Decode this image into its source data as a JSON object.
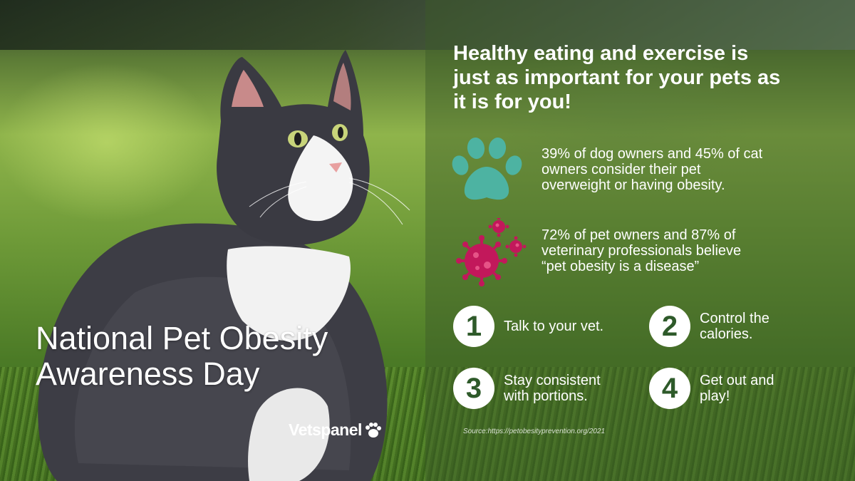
{
  "colors": {
    "accent_teal": "#4db3a2",
    "accent_magenta": "#c2185b",
    "text": "#ffffff",
    "number_text": "#2e5a2a"
  },
  "title": {
    "line1": "National Pet Obesity",
    "line2": "Awareness Day"
  },
  "logo": {
    "text": "Vetspanel",
    "icon": "paw-icon"
  },
  "headline": {
    "line1": "Healthy eating and exercise is",
    "line2": "just as important for your pets as",
    "line3": "it is for you!"
  },
  "stats": [
    {
      "icon": "paw-icon",
      "line1": "39% of dog owners and 45% of cat",
      "line2": "owners consider their pet",
      "line3": "overweight or having obesity."
    },
    {
      "icon": "virus-icon",
      "line1": "72% of pet owners and 87% of",
      "line2": "veterinary professionals believe",
      "line3": "“pet obesity is a disease”"
    }
  ],
  "steps": [
    {
      "number": "1",
      "line1": "Talk to your vet.",
      "line2": ""
    },
    {
      "number": "2",
      "line1": "Control the",
      "line2": "calories."
    },
    {
      "number": "3",
      "line1": "Stay consistent",
      "line2": "with portions."
    },
    {
      "number": "4",
      "line1": "Get out and",
      "line2": "play!"
    }
  ],
  "source": "Source:https://petobesityprevention.org/2021"
}
